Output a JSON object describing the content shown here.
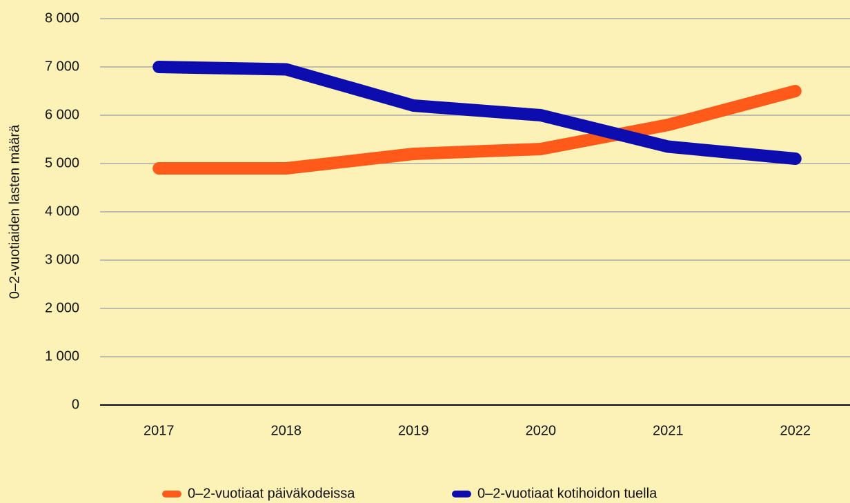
{
  "chart_data": {
    "type": "line",
    "y_label": "0–2-vuotiaiden lasten määrä",
    "categories": [
      "2017",
      "2018",
      "2019",
      "2020",
      "2021",
      "2022"
    ],
    "series": [
      {
        "name": "0–2-vuotiaat päiväkodeissa",
        "color": "#ff5a1a",
        "values": [
          4900,
          4900,
          5200,
          5300,
          5800,
          6500
        ]
      },
      {
        "name": "0–2-vuotiaat kotihoidon tuella",
        "color": "#0c0caf",
        "values": [
          7000,
          6950,
          6200,
          6000,
          5350,
          5100
        ]
      }
    ],
    "ylim": [
      0,
      8000
    ],
    "yticks": [
      0,
      {
        "value": 1000,
        "label": "1 000"
      },
      {
        "value": 2000,
        "label": "2 000"
      },
      {
        "value": 3000,
        "label": "3 000"
      },
      {
        "value": 4000,
        "label": "4 000"
      },
      {
        "value": 5000,
        "label": "5 000"
      },
      {
        "value": 6000,
        "label": "6 000"
      },
      {
        "value": 7000,
        "label": "7 000"
      },
      {
        "value": 8000,
        "label": "8 000"
      }
    ],
    "grid": true,
    "legend": "bottom"
  }
}
